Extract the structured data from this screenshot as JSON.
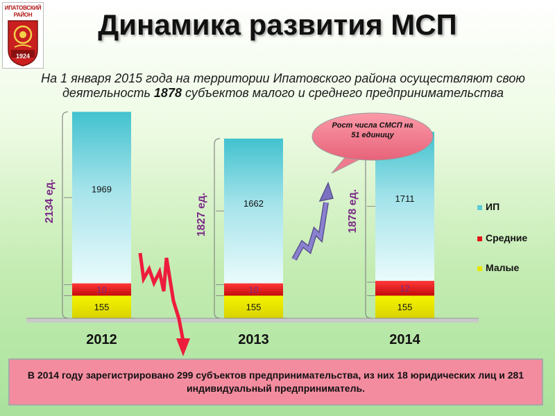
{
  "title": "Динамика развития МСП",
  "subtitle": {
    "before": "На 1 января 2015 года на территории Ипатовского района осуществляют свою деятельность ",
    "highlight": "1878",
    "after": " субъектов малого и среднего предпринимательства"
  },
  "emblem": {
    "line1": "ИПАТОВСКИЙ",
    "line2": "РАЙОН",
    "year": "1924"
  },
  "callout": "Рост числа СМСП на 51 единицу",
  "legend": [
    "ИП",
    "Средние",
    "Малые"
  ],
  "bottom_text": "В 2014 году зарегистрировано 299 субъектов предпринимательства, из них 18 юридических лиц и 281 индивидуальный предприниматель.",
  "colors": {
    "ip": "#5ccbd6",
    "srednie": "#e01818",
    "malye": "#e8e600",
    "arrow_down": "#ee1c3c",
    "arrow_up": "#7a72c0",
    "axis_label": "#7a2a86"
  },
  "chart_data": {
    "type": "bar",
    "stacked": true,
    "categories": [
      "2012",
      "2013",
      "2014"
    ],
    "series": [
      {
        "name": "Малые",
        "values": [
          155,
          155,
          155
        ]
      },
      {
        "name": "Средние",
        "values": [
          10,
          10,
          12
        ]
      },
      {
        "name": "ИП",
        "values": [
          1969,
          1662,
          1711
        ]
      }
    ],
    "totals": [
      "2134 ед.",
      "1827 ед.",
      "1878 ед."
    ],
    "legend_position": "right"
  }
}
